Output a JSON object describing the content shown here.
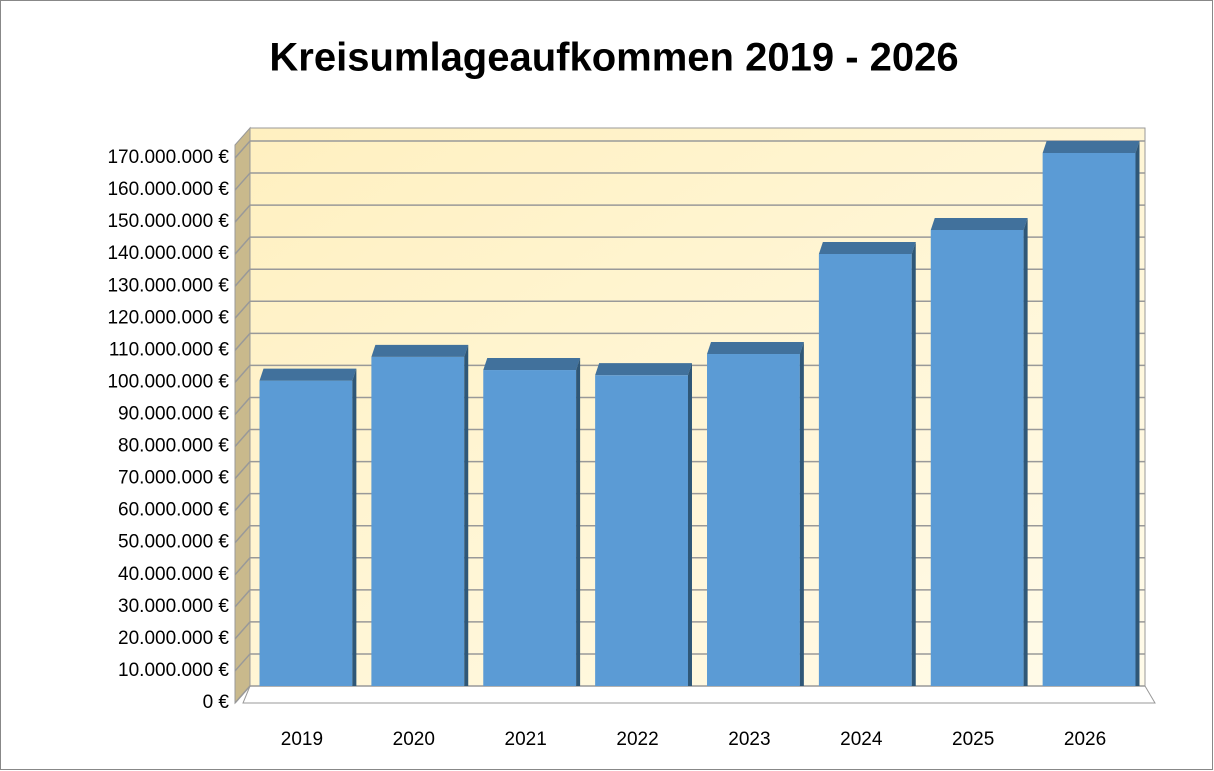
{
  "chart_data": {
    "type": "bar",
    "title": "Kreisumlageaufkommen 2019 - 2026",
    "categories": [
      "2019",
      "2020",
      "2021",
      "2022",
      "2023",
      "2024",
      "2025",
      "2026"
    ],
    "values": [
      99000000,
      106400000,
      102300000,
      100700000,
      107300000,
      138500000,
      146000000,
      170000000
    ],
    "color": "#5b9bd5",
    "ylim": [
      0,
      170000000
    ],
    "yticks": [
      {
        "value": 0,
        "label": "0 €"
      },
      {
        "value": 10000000,
        "label": "10.000.000 €"
      },
      {
        "value": 20000000,
        "label": "20.000.000 €"
      },
      {
        "value": 30000000,
        "label": "30.000.000 €"
      },
      {
        "value": 40000000,
        "label": "40.000.000 €"
      },
      {
        "value": 50000000,
        "label": "50.000.000 €"
      },
      {
        "value": 60000000,
        "label": "60.000.000 €"
      },
      {
        "value": 70000000,
        "label": "70.000.000 €"
      },
      {
        "value": 80000000,
        "label": "80.000.000 €"
      },
      {
        "value": 90000000,
        "label": "90.000.000 €"
      },
      {
        "value": 100000000,
        "label": "100.000.000 €"
      },
      {
        "value": 110000000,
        "label": "110.000.000 €"
      },
      {
        "value": 120000000,
        "label": "120.000.000 €"
      },
      {
        "value": 130000000,
        "label": "130.000.000 €"
      },
      {
        "value": 140000000,
        "label": "140.000.000 €"
      },
      {
        "value": 150000000,
        "label": "150.000.000 €"
      },
      {
        "value": 160000000,
        "label": "160.000.000 €"
      },
      {
        "value": 170000000,
        "label": "170.000.000 €"
      }
    ],
    "grid": true
  }
}
